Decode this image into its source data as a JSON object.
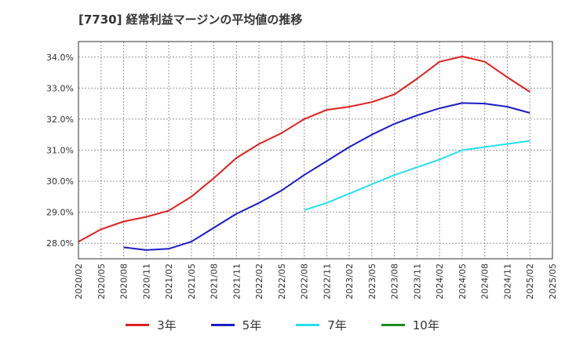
{
  "chart_data": {
    "type": "line",
    "title": "[7730]  経常利益マージンの平均値の推移",
    "ylim": [
      27.5,
      34.5
    ],
    "y_ticks": [
      28.0,
      29.0,
      30.0,
      31.0,
      32.0,
      33.0,
      34.0
    ],
    "y_tick_labels": [
      "28.0%",
      "29.0%",
      "30.0%",
      "31.0%",
      "32.0%",
      "33.0%",
      "34.0%"
    ],
    "x_tick_labels": [
      "2020/02",
      "2020/05",
      "2020/08",
      "2020/11",
      "2021/02",
      "2021/05",
      "2021/08",
      "2021/11",
      "2022/02",
      "2022/05",
      "2022/08",
      "2022/11",
      "2023/02",
      "2023/05",
      "2023/08",
      "2023/11",
      "2024/02",
      "2024/05",
      "2024/08",
      "2024/11",
      "2025/02",
      "2025/05"
    ],
    "grid": true,
    "legend_position": "bottom",
    "series": [
      {
        "name": "3年",
        "color": "#e02020",
        "start_index": 0,
        "values": [
          28.05,
          28.45,
          28.7,
          28.85,
          29.05,
          29.5,
          30.1,
          30.75,
          31.2,
          31.55,
          32.0,
          32.3,
          32.4,
          32.55,
          32.8,
          33.3,
          33.85,
          34.02,
          33.85,
          33.35,
          32.88
        ]
      },
      {
        "name": "5年",
        "color": "#1c1cc8",
        "start_index": 2,
        "values": [
          27.87,
          27.78,
          27.82,
          28.05,
          28.5,
          28.95,
          29.3,
          29.7,
          30.2,
          30.65,
          31.1,
          31.5,
          31.85,
          32.12,
          32.35,
          32.52,
          32.5,
          32.4,
          32.2
        ]
      },
      {
        "name": "7年",
        "color": "#22e0f0",
        "start_index": 10,
        "values": [
          29.07,
          29.3,
          29.6,
          29.9,
          30.2,
          30.45,
          30.7,
          31.0,
          31.1,
          31.2,
          31.3
        ]
      },
      {
        "name": "10年",
        "color": "#1a8c1a",
        "start_index": 0,
        "values": []
      }
    ]
  }
}
